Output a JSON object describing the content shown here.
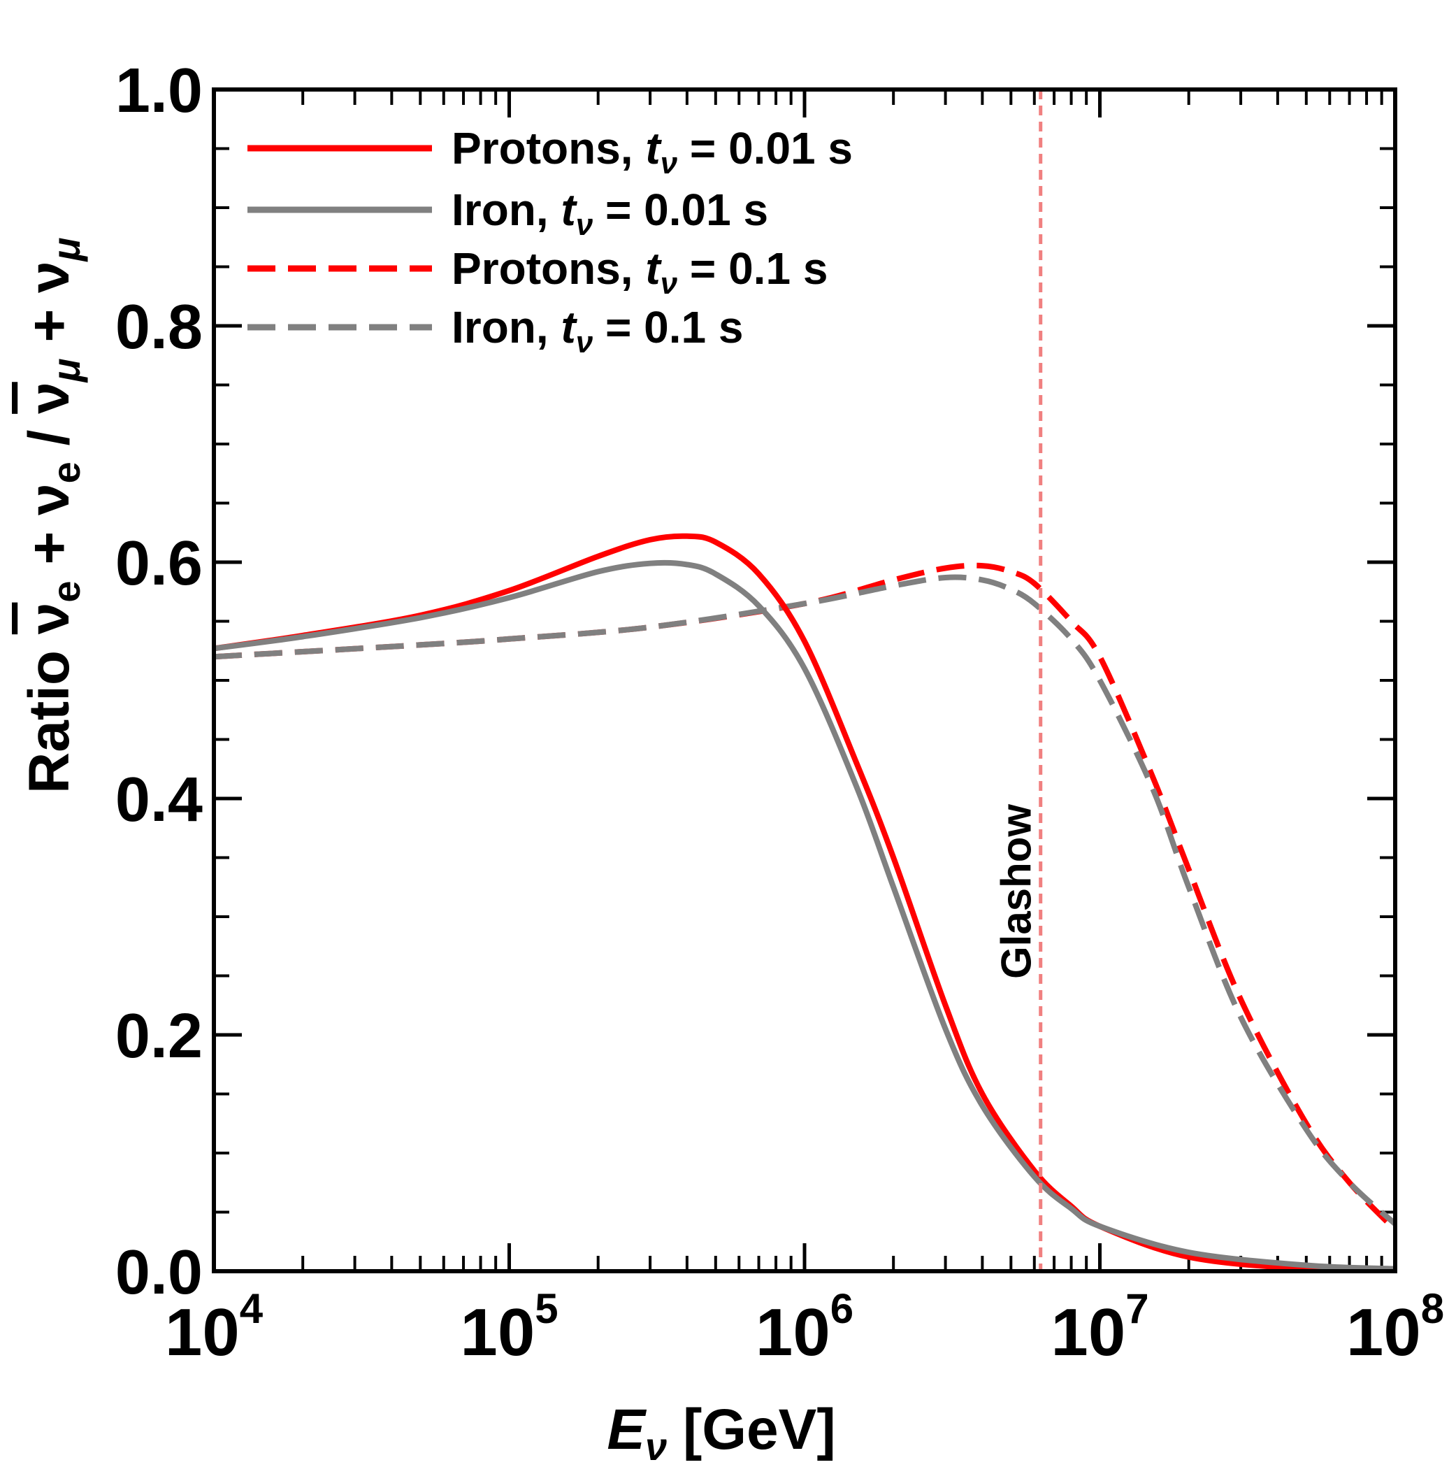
{
  "chart_data": {
    "type": "line",
    "title": "",
    "xlabel": {
      "main": "E",
      "sub": "ν",
      "unit": " [GeV]"
    },
    "ylabel": {
      "prefix": "Ratio ",
      "nu": "ν",
      "e": "e",
      "mu": "μ",
      "plus": " + ",
      "slash": " / "
    },
    "xscale": "log",
    "xlim": [
      10000,
      100000000
    ],
    "ylim": [
      0.0,
      1.0
    ],
    "x_ticks": [
      {
        "base": "10",
        "exp": "4",
        "value": 10000
      },
      {
        "base": "10",
        "exp": "5",
        "value": 100000
      },
      {
        "base": "10",
        "exp": "6",
        "value": 1000000
      },
      {
        "base": "10",
        "exp": "7",
        "value": 10000000
      },
      {
        "base": "10",
        "exp": "8",
        "value": 100000000
      }
    ],
    "y_ticks": [
      "0.0",
      "0.2",
      "0.4",
      "0.6",
      "0.8",
      "1.0"
    ],
    "y_tick_values": [
      0.0,
      0.2,
      0.4,
      0.6,
      0.8,
      1.0
    ],
    "grid": false,
    "legend_position": "top-left",
    "series": [
      {
        "name": "Protons, t_ν = 0.01 s",
        "label_pre": "Protons, ",
        "label_post": " = 0.01 s",
        "color": "#ff0000",
        "style": "solid",
        "x": [
          10000,
          20000,
          50000,
          100000,
          200000,
          300000,
          400000,
          500000,
          700000,
          1000000,
          1500000,
          2000000,
          3000000,
          4000000,
          6000000,
          8000000,
          10000000,
          20000000,
          50000000,
          100000000
        ],
        "y": [
          0.527,
          0.538,
          0.555,
          0.576,
          0.605,
          0.619,
          0.622,
          0.617,
          0.59,
          0.533,
          0.43,
          0.35,
          0.225,
          0.15,
          0.085,
          0.055,
          0.038,
          0.012,
          0.002,
          0.001
        ]
      },
      {
        "name": "Iron, t_ν = 0.01 s",
        "label_pre": "Iron, ",
        "label_post": " = 0.01 s",
        "color": "#808080",
        "style": "solid",
        "x": [
          10000,
          20000,
          50000,
          100000,
          200000,
          300000,
          400000,
          500000,
          700000,
          1000000,
          1500000,
          2000000,
          3000000,
          4000000,
          6000000,
          8000000,
          10000000,
          20000000,
          50000000,
          100000000
        ],
        "y": [
          0.527,
          0.537,
          0.553,
          0.57,
          0.592,
          0.599,
          0.598,
          0.59,
          0.563,
          0.51,
          0.41,
          0.325,
          0.205,
          0.14,
          0.08,
          0.053,
          0.038,
          0.016,
          0.005,
          0.002
        ]
      },
      {
        "name": "Protons, t_ν = 0.1 s",
        "label_pre": "Protons, ",
        "label_post": " = 0.1 s",
        "color": "#ff0000",
        "style": "dashed",
        "x": [
          10000,
          50000,
          100000,
          300000,
          1000000,
          2000000,
          3000000,
          4000000,
          5000000,
          6000000,
          8000000,
          10000000,
          15000000,
          20000000,
          30000000,
          50000000,
          70000000,
          100000000
        ],
        "y": [
          0.52,
          0.53,
          0.535,
          0.545,
          0.565,
          0.585,
          0.595,
          0.597,
          0.592,
          0.582,
          0.55,
          0.52,
          0.42,
          0.34,
          0.23,
          0.125,
          0.075,
          0.035
        ]
      },
      {
        "name": "Iron, t_ν = 0.1 s",
        "label_pre": "Iron, ",
        "label_post": " = 0.1 s",
        "color": "#808080",
        "style": "dashed",
        "x": [
          10000,
          50000,
          100000,
          300000,
          1000000,
          2000000,
          3000000,
          4000000,
          5000000,
          6000000,
          8000000,
          10000000,
          15000000,
          20000000,
          30000000,
          50000000,
          70000000,
          100000000
        ],
        "y": [
          0.52,
          0.53,
          0.535,
          0.545,
          0.565,
          0.58,
          0.587,
          0.585,
          0.577,
          0.565,
          0.535,
          0.5,
          0.41,
          0.325,
          0.215,
          0.12,
          0.075,
          0.04
        ]
      }
    ],
    "legend_t": "t",
    "legend_nu": "ν",
    "annotations": [
      {
        "text": "Glashow",
        "x": 6300000,
        "color": "#f08080",
        "style": "dashed-vertical"
      }
    ]
  }
}
